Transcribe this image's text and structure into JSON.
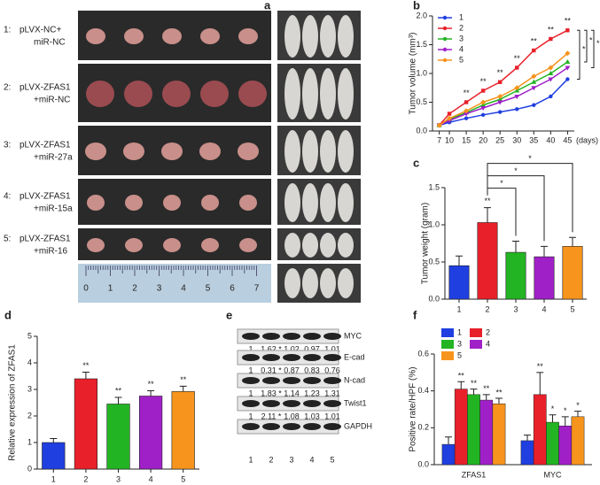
{
  "panel_labels": [
    "a",
    "b",
    "c",
    "d",
    "e",
    "f"
  ],
  "panel_a": {
    "groups": [
      {
        "number": "1:",
        "line1": "pLVX-NC+",
        "line2": "miR-NC"
      },
      {
        "number": "2:",
        "line1": "pLVX-ZFAS1",
        "line2": "+miR-NC"
      },
      {
        "number": "3:",
        "line1": "pLVX-ZFAS1",
        "line2": "+miR-27a"
      },
      {
        "number": "4:",
        "line1": "pLVX-ZFAS1",
        "line2": "+miR-15a"
      },
      {
        "number": "5:",
        "line1": "pLVX-ZFAS1",
        "line2": "+miR-16"
      }
    ],
    "ruler_numbers": [
      "0",
      "1",
      "2",
      "3",
      "4",
      "5",
      "6",
      "7"
    ]
  },
  "panel_e": {
    "rows": [
      {
        "label": "MYC",
        "values": [
          "1",
          "1.62 *",
          "1.02",
          "0.97",
          "1.01"
        ]
      },
      {
        "label": "E-cad",
        "values": [
          "1",
          "0.31 *",
          "0.87",
          "0.83",
          "0.76"
        ]
      },
      {
        "label": "N-cad",
        "values": [
          "1",
          "1.83 *",
          "1.14",
          "1.23",
          "1.31"
        ]
      },
      {
        "label": "Twist1",
        "values": [
          "1",
          "2.11 *",
          "1.08",
          "1.03",
          "1.01"
        ]
      },
      {
        "label": "GAPDH"
      }
    ],
    "lanes": [
      "1",
      "2",
      "3",
      "4",
      "5"
    ]
  },
  "chart_data": [
    {
      "type": "line",
      "ylabel": "Tumor volume (mm³)",
      "xlabel": "(days)",
      "x": [
        7,
        10,
        15,
        20,
        25,
        30,
        35,
        40,
        45
      ],
      "xlim": [
        5,
        47
      ],
      "xticks": [
        7,
        10,
        15,
        20,
        25,
        30,
        35,
        40,
        45
      ],
      "ylim": [
        0,
        2
      ],
      "yticks": [
        {
          "value": 0,
          "label": "0.0"
        },
        {
          "value": 0.5,
          "label": "0.5"
        },
        {
          "value": 1,
          "label": "1.0"
        },
        {
          "value": 1.5,
          "label": "1.5"
        },
        {
          "value": 2,
          "label": "2.0"
        }
      ],
      "series": [
        {
          "name": "1",
          "color": "#1f3fe0",
          "values": [
            0.1,
            0.15,
            0.22,
            0.28,
            0.33,
            0.38,
            0.45,
            0.6,
            0.9
          ]
        },
        {
          "name": "2",
          "color": "#e8202a",
          "values": [
            0.1,
            0.3,
            0.5,
            0.7,
            0.85,
            1.1,
            1.4,
            1.6,
            1.75
          ]
        },
        {
          "name": "3",
          "color": "#22b422",
          "values": [
            0.1,
            0.2,
            0.32,
            0.45,
            0.55,
            0.7,
            0.85,
            1.0,
            1.2
          ]
        },
        {
          "name": "4",
          "color": "#a020c8",
          "values": [
            0.1,
            0.18,
            0.3,
            0.4,
            0.5,
            0.6,
            0.75,
            0.9,
            1.1
          ]
        },
        {
          "name": "5",
          "color": "#f7941d",
          "values": [
            0.1,
            0.22,
            0.35,
            0.5,
            0.6,
            0.75,
            0.95,
            1.1,
            1.35
          ]
        }
      ],
      "sig_labels": [
        null,
        null,
        "**",
        "**",
        "**",
        "**",
        "**",
        "**",
        "**"
      ],
      "bracket_labels": [
        "*",
        "*",
        "*"
      ]
    },
    {
      "type": "bar",
      "ylabel": "Tumor weight (gram)",
      "categories": [
        "1",
        "2",
        "3",
        "4",
        "5"
      ],
      "values": [
        0.45,
        1.03,
        0.63,
        0.57,
        0.71
      ],
      "errors": [
        0.13,
        0.2,
        0.15,
        0.14,
        0.12
      ],
      "colors": [
        "#1f3fe0",
        "#e8202a",
        "#22b422",
        "#a020c8",
        "#f7941d"
      ],
      "ylim": [
        0,
        1.5
      ],
      "yticks": [
        {
          "value": 0,
          "label": "0.0"
        },
        {
          "value": 0.5,
          "label": "0.5"
        },
        {
          "value": 1,
          "label": "1.0"
        },
        {
          "value": 1.5,
          "label": "1.5"
        }
      ],
      "sig_labels": [
        null,
        "**",
        null,
        null,
        null
      ],
      "bracket_labels": [
        "*",
        "*",
        "*"
      ]
    },
    {
      "type": "bar",
      "ylabel": "Relative expression of ZFAS1",
      "categories": [
        "1",
        "2",
        "3",
        "4",
        "5"
      ],
      "values": [
        1.0,
        3.4,
        2.45,
        2.75,
        2.92
      ],
      "errors": [
        0.15,
        0.25,
        0.25,
        0.2,
        0.2
      ],
      "colors": [
        "#1f3fe0",
        "#e8202a",
        "#22b422",
        "#a020c8",
        "#f7941d"
      ],
      "ylim": [
        0,
        5
      ],
      "yticks": [
        0,
        1,
        2,
        3,
        4,
        5
      ],
      "sig_labels": [
        null,
        "**",
        "**",
        "**",
        "**"
      ]
    },
    {
      "type": "grouped_bar",
      "ylabel": "Positive rate/HPF (%)",
      "categories": [
        "ZFAS1",
        "MYC"
      ],
      "ylim": [
        0,
        0.6
      ],
      "yticks": [
        {
          "value": 0,
          "label": "0.0"
        },
        {
          "value": 0.2,
          "label": "0.2"
        },
        {
          "value": 0.4,
          "label": "0.4"
        },
        {
          "value": 0.6,
          "label": "0.6"
        }
      ],
      "series": [
        {
          "name": "1",
          "color": "#1f3fe0",
          "values": [
            0.11,
            0.13
          ],
          "errors": [
            0.04,
            0.03
          ],
          "sig_labels": [
            null,
            null
          ]
        },
        {
          "name": "2",
          "color": "#e8202a",
          "values": [
            0.41,
            0.38
          ],
          "errors": [
            0.04,
            0.12
          ],
          "sig_labels": [
            "**",
            "**"
          ]
        },
        {
          "name": "3",
          "color": "#22b422",
          "values": [
            0.38,
            0.23
          ],
          "errors": [
            0.03,
            0.04
          ],
          "sig_labels": [
            "**",
            "*"
          ]
        },
        {
          "name": "4",
          "color": "#a020c8",
          "values": [
            0.35,
            0.21
          ],
          "errors": [
            0.03,
            0.05
          ],
          "sig_labels": [
            "**",
            "*"
          ]
        },
        {
          "name": "5",
          "color": "#f7941d",
          "values": [
            0.33,
            0.26
          ],
          "errors": [
            0.03,
            0.03
          ],
          "sig_labels": [
            "**",
            "*"
          ]
        }
      ]
    }
  ]
}
